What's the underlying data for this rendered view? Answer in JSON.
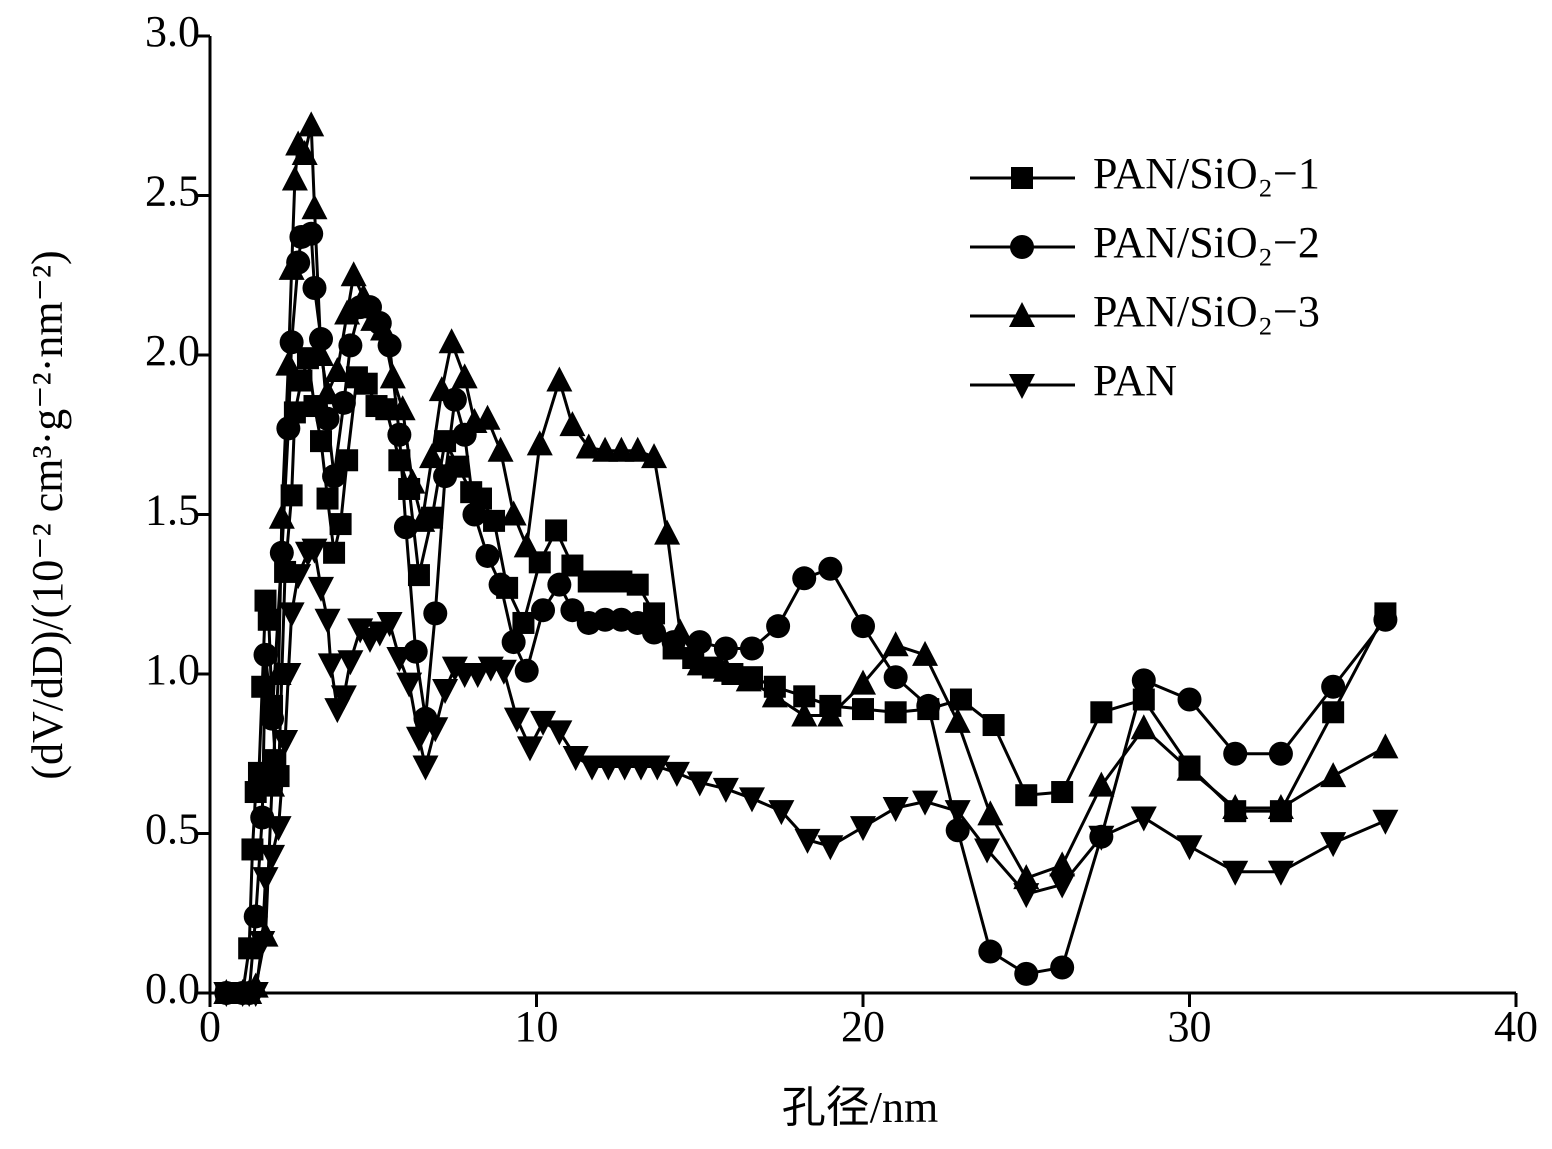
{
  "chart_data": {
    "type": "line",
    "xlabel": "孔径/nm",
    "ylabel": "(dV/dD)/(10⁻² cm³·g⁻²·nm⁻²)",
    "xlim": [
      0,
      40
    ],
    "xticks": [
      0,
      10,
      20,
      30,
      40
    ],
    "ylim": [
      0,
      3
    ],
    "yticks": [
      {
        "value": 0,
        "label": "0.0"
      },
      0.5,
      {
        "value": 1,
        "label": "1.0"
      },
      1.5,
      {
        "value": 2,
        "label": "2.0"
      },
      2.5,
      {
        "value": 3,
        "label": "3.0"
      }
    ],
    "legend": "upper right",
    "series": [
      {
        "name": "PAN/SiO₂−1",
        "color": "#000000",
        "marker": "square",
        "x": [
          0.5,
          1,
          1.2,
          1.3,
          1.4,
          1.5,
          1.6,
          1.7,
          1.8,
          1.9,
          2.0,
          2.1,
          2.3,
          2.5,
          2.6,
          2.8,
          3.0,
          3.2,
          3.4,
          3.6,
          3.8,
          4.0,
          4.2,
          4.5,
          4.8,
          5.1,
          5.4,
          5.8,
          6.1,
          6.4,
          6.8,
          7.2,
          7.6,
          8.0,
          8.3,
          8.7,
          9.1,
          9.6,
          10.1,
          10.6,
          11.1,
          11.6,
          12.1,
          12.6,
          13.1,
          13.6,
          14.2,
          14.8,
          15.4,
          16.0,
          16.6,
          17.3,
          18.2,
          19.0,
          20.0,
          21.0,
          22.0,
          23.0,
          24.0,
          25.0,
          26.1,
          27.3,
          28.6,
          30.0,
          31.4,
          32.8,
          34.4,
          36.0
        ],
        "values": [
          0,
          0,
          0.14,
          0.45,
          0.63,
          0.69,
          0.96,
          1.23,
          1.17,
          0.9,
          0.73,
          0.68,
          1.32,
          1.56,
          1.82,
          1.92,
          1.99,
          1.84,
          1.73,
          1.55,
          1.38,
          1.47,
          1.67,
          1.93,
          1.91,
          1.84,
          1.83,
          1.67,
          1.58,
          1.31,
          1.49,
          1.73,
          1.65,
          1.57,
          1.55,
          1.48,
          1.27,
          1.16,
          1.35,
          1.45,
          1.34,
          1.29,
          1.29,
          1.29,
          1.28,
          1.19,
          1.08,
          1.05,
          1.02,
          1.0,
          0.99,
          0.96,
          0.93,
          0.9,
          0.89,
          0.88,
          0.89,
          0.92,
          0.84,
          0.62,
          0.63,
          0.88,
          0.92,
          0.71,
          0.57,
          0.57,
          0.88,
          1.19
        ]
      },
      {
        "name": "PAN/SiO₂−2",
        "color": "#000000",
        "marker": "circle",
        "x": [
          0.5,
          1,
          1.2,
          1.4,
          1.6,
          1.7,
          1.9,
          2.2,
          2.4,
          2.5,
          2.7,
          2.8,
          3.1,
          3.2,
          3.4,
          3.6,
          3.8,
          4.1,
          4.3,
          4.6,
          4.9,
          5.2,
          5.5,
          5.8,
          6.0,
          6.3,
          6.6,
          6.9,
          7.2,
          7.5,
          7.8,
          8.1,
          8.5,
          8.9,
          9.3,
          9.7,
          10.2,
          10.7,
          11.1,
          11.6,
          12.1,
          12.6,
          13.1,
          13.6,
          14.2,
          15.0,
          15.8,
          16.6,
          17.4,
          18.2,
          19.0,
          20.0,
          21.0,
          22.0,
          22.9,
          23.9,
          25.0,
          26.1,
          27.3,
          28.6,
          30.0,
          31.4,
          32.8,
          34.4,
          36.0
        ],
        "values": [
          0,
          0,
          0,
          0.24,
          0.55,
          1.06,
          0.86,
          1.38,
          1.77,
          2.04,
          2.29,
          2.37,
          2.38,
          2.21,
          2.05,
          1.8,
          1.62,
          1.85,
          2.03,
          2.15,
          2.15,
          2.1,
          2.03,
          1.75,
          1.46,
          1.07,
          0.86,
          1.19,
          1.62,
          1.86,
          1.75,
          1.5,
          1.37,
          1.28,
          1.1,
          1.01,
          1.2,
          1.28,
          1.2,
          1.16,
          1.17,
          1.17,
          1.16,
          1.13,
          1.1,
          1.1,
          1.08,
          1.08,
          1.15,
          1.3,
          1.33,
          1.15,
          0.99,
          0.9,
          0.51,
          0.13,
          0.06,
          0.08,
          0.49,
          0.98,
          0.92,
          0.75,
          0.75,
          0.96,
          1.17
        ]
      },
      {
        "name": "PAN/SiO₂−3",
        "color": "#000000",
        "marker": "triangle-up",
        "x": [
          0.5,
          1,
          1.2,
          1.4,
          1.7,
          1.9,
          2.1,
          2.2,
          2.4,
          2.5,
          2.6,
          2.7,
          2.9,
          3.1,
          3.2,
          3.4,
          3.6,
          3.9,
          4.2,
          4.4,
          4.7,
          5.0,
          5.3,
          5.6,
          5.9,
          6.2,
          6.5,
          6.8,
          7.1,
          7.4,
          7.8,
          8.1,
          8.5,
          8.9,
          9.3,
          9.7,
          10.1,
          10.7,
          11.1,
          11.6,
          12.1,
          12.6,
          13.1,
          13.6,
          14.0,
          14.4,
          15.0,
          15.8,
          16.5,
          17.3,
          18.2,
          19.0,
          20.0,
          21.0,
          21.9,
          22.9,
          23.9,
          25.0,
          26.1,
          27.3,
          28.6,
          30.0,
          31.4,
          32.8,
          34.4,
          36.0
        ],
        "values": [
          0,
          0,
          0,
          0.02,
          0.18,
          0.65,
          1.0,
          1.49,
          1.97,
          2.27,
          2.55,
          2.66,
          2.63,
          2.72,
          2.46,
          2.0,
          1.88,
          1.95,
          2.13,
          2.25,
          2.18,
          2.11,
          2.08,
          1.93,
          1.83,
          1.6,
          1.48,
          1.68,
          1.89,
          2.04,
          1.93,
          1.79,
          1.8,
          1.7,
          1.5,
          1.4,
          1.72,
          1.92,
          1.78,
          1.71,
          1.7,
          1.7,
          1.7,
          1.68,
          1.44,
          1.13,
          1.03,
          1.01,
          0.98,
          0.93,
          0.87,
          0.87,
          0.97,
          1.09,
          1.06,
          0.85,
          0.56,
          0.36,
          0.4,
          0.65,
          0.83,
          0.7,
          0.58,
          0.58,
          0.68,
          0.77
        ]
      },
      {
        "name": "PAN",
        "color": "#000000",
        "marker": "triangle-down",
        "x": [
          0.5,
          1,
          1.2,
          1.4,
          1.6,
          1.7,
          1.9,
          2.1,
          2.3,
          2.4,
          2.5,
          2.7,
          3.0,
          3.2,
          3.4,
          3.6,
          3.7,
          3.9,
          4.1,
          4.3,
          4.6,
          4.9,
          5.2,
          5.5,
          5.8,
          6.1,
          6.4,
          6.6,
          6.9,
          7.2,
          7.5,
          7.8,
          8.2,
          8.6,
          9.0,
          9.4,
          9.8,
          10.2,
          10.7,
          11.2,
          11.7,
          12.2,
          12.7,
          13.2,
          13.7,
          14.3,
          15.0,
          15.8,
          16.6,
          17.5,
          18.3,
          19.0,
          20.0,
          21.0,
          21.9,
          22.9,
          23.8,
          25.0,
          26.1,
          27.3,
          28.6,
          30.0,
          31.4,
          32.8,
          34.4,
          36.0
        ],
        "values": [
          0,
          0,
          0,
          0,
          0.16,
          0.36,
          0.43,
          0.52,
          0.79,
          1.0,
          1.19,
          1.31,
          1.38,
          1.39,
          1.27,
          1.17,
          1.03,
          0.89,
          0.93,
          1.04,
          1.14,
          1.11,
          1.13,
          1.16,
          1.05,
          0.97,
          0.8,
          0.71,
          0.83,
          0.95,
          1.02,
          1.0,
          1.0,
          1.02,
          1.01,
          0.86,
          0.77,
          0.85,
          0.82,
          0.74,
          0.71,
          0.71,
          0.71,
          0.71,
          0.71,
          0.69,
          0.66,
          0.64,
          0.61,
          0.57,
          0.48,
          0.46,
          0.52,
          0.58,
          0.6,
          0.57,
          0.45,
          0.31,
          0.34,
          0.49,
          0.55,
          0.46,
          0.38,
          0.38,
          0.47,
          0.54
        ]
      }
    ]
  }
}
